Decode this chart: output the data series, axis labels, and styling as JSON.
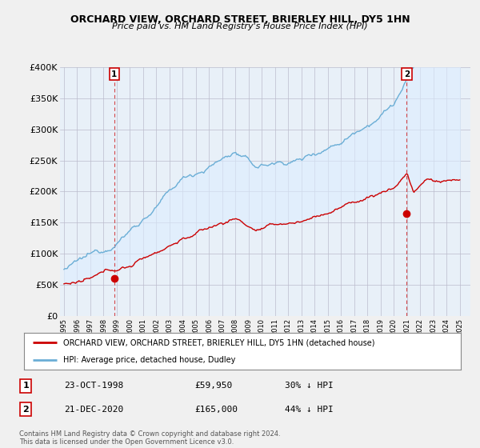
{
  "title1": "ORCHARD VIEW, ORCHARD STREET, BRIERLEY HILL, DY5 1HN",
  "title2": "Price paid vs. HM Land Registry's House Price Index (HPI)",
  "ylabel_values": [
    "£0",
    "£50K",
    "£100K",
    "£150K",
    "£200K",
    "£250K",
    "£300K",
    "£350K",
    "£400K"
  ],
  "ylim": [
    0,
    400000
  ],
  "hpi_color": "#6baed6",
  "price_color": "#cc0000",
  "fill_color": "#ddeeff",
  "marker1_date": 1998.81,
  "marker1_value": 59950,
  "marker1_label": "1",
  "marker2_date": 2020.97,
  "marker2_value": 165000,
  "marker2_label": "2",
  "legend_line1": "ORCHARD VIEW, ORCHARD STREET, BRIERLEY HILL, DY5 1HN (detached house)",
  "legend_line2": "HPI: Average price, detached house, Dudley",
  "table_row1": [
    "1",
    "23-OCT-1998",
    "£59,950",
    "30% ↓ HPI"
  ],
  "table_row2": [
    "2",
    "21-DEC-2020",
    "£165,000",
    "44% ↓ HPI"
  ],
  "footnote": "Contains HM Land Registry data © Crown copyright and database right 2024.\nThis data is licensed under the Open Government Licence v3.0.",
  "background_color": "#f0f0f0",
  "plot_bg_color": "#e8f0f8"
}
